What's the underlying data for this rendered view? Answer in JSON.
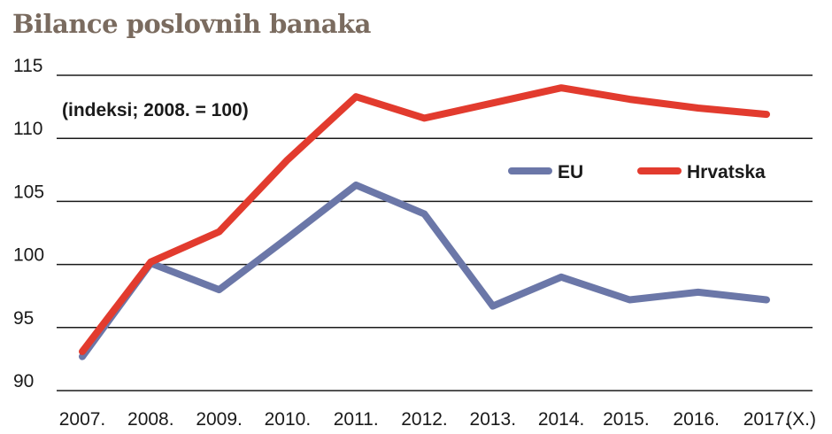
{
  "chart_data": {
    "type": "line",
    "title": "Bilance poslovnih banaka",
    "subtitle": "(indeksi; 2008. = 100)",
    "categories": [
      "2007.",
      "2008.",
      "2009.",
      "2010.",
      "2011.",
      "2012.",
      "2013.",
      "2014.",
      "2015.",
      "2016.",
      "2017."
    ],
    "x_suffix": "(X.)",
    "xlabel": "",
    "ylabel": "",
    "ylim": [
      90,
      115
    ],
    "yticks": [
      90,
      95,
      100,
      105,
      110,
      115
    ],
    "grid": true,
    "legend_position": "top-right",
    "series": [
      {
        "name": "EU",
        "color": "#6b77a8",
        "values": [
          92.7,
          100.1,
          98.0,
          102.1,
          106.3,
          104.0,
          96.7,
          99.0,
          97.2,
          97.8,
          97.2
        ]
      },
      {
        "name": "Hrvatska",
        "color": "#e23b2e",
        "values": [
          93.1,
          100.2,
          102.6,
          108.3,
          113.3,
          111.6,
          112.8,
          114.0,
          113.1,
          112.4,
          111.9
        ]
      }
    ]
  }
}
